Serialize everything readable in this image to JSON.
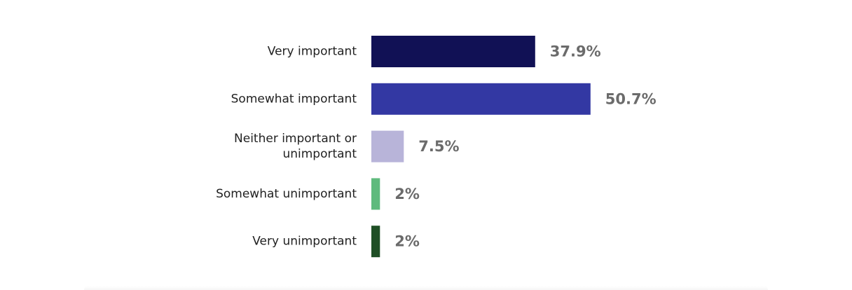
{
  "chart_data": {
    "type": "bar",
    "orientation": "horizontal",
    "categories": [
      [
        "Very important"
      ],
      [
        "Somewhat important"
      ],
      [
        "Neither important or",
        "unimportant"
      ],
      [
        "Somewhat unimportant"
      ],
      [
        "Very unimportant"
      ]
    ],
    "values": [
      37.9,
      50.7,
      7.5,
      2,
      2
    ],
    "value_labels": [
      "37.9%",
      "50.7%",
      "7.5%",
      "2%",
      "2%"
    ],
    "colors": [
      "#111155",
      "#3338a3",
      "#b8b4d9",
      "#5fba7d",
      "#1f4f25"
    ],
    "xlim": [
      0,
      100
    ],
    "grid": false,
    "legend": "none"
  }
}
